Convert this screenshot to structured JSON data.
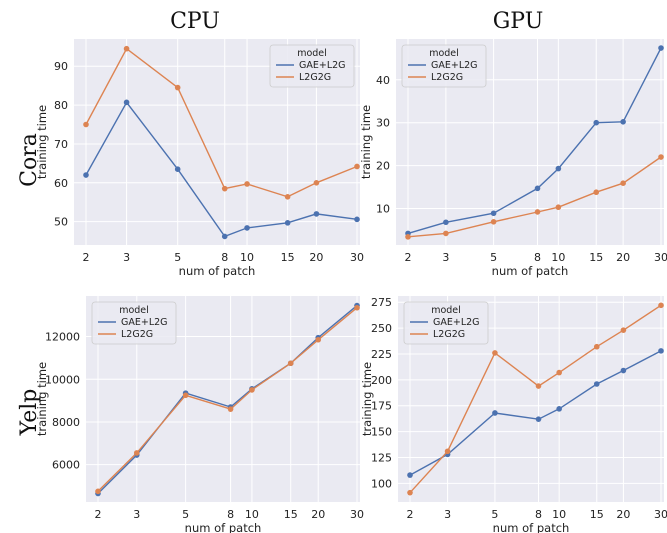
{
  "column_titles": [
    "CPU",
    "GPU"
  ],
  "row_titles": [
    "Cora",
    "Yelp"
  ],
  "colors": {
    "GAE+L2G": "#4c72b0",
    "L2G2G": "#dd8452",
    "panel_bg": "#eaeaf2",
    "grid": "#ffffff"
  },
  "chart_data": [
    {
      "type": "line",
      "row": "Cora",
      "column": "CPU",
      "x": [
        2,
        3,
        5,
        8,
        10,
        15,
        20,
        30
      ],
      "xticklabels": [
        "2",
        "3",
        "5",
        "8",
        "10",
        "15",
        "20",
        "30"
      ],
      "xscale": "log",
      "xlabel": "num of patch",
      "ylabel": "training time",
      "ylim": [
        44,
        97
      ],
      "yticks": [
        50,
        60,
        70,
        80,
        90
      ],
      "yticklabels": [
        "50",
        "60",
        "70",
        "80",
        "90"
      ],
      "legend": {
        "title": "model",
        "placement": "top-right"
      },
      "series": [
        {
          "name": "GAE+L2G",
          "values": [
            62,
            80.7,
            63.5,
            46.2,
            48.4,
            49.7,
            52,
            50.6
          ]
        },
        {
          "name": "L2G2G",
          "values": [
            75,
            94.5,
            84.5,
            58.5,
            59.7,
            56.4,
            60,
            64.2
          ]
        }
      ]
    },
    {
      "type": "line",
      "row": "Cora",
      "column": "GPU",
      "x": [
        2,
        3,
        5,
        8,
        10,
        15,
        20,
        30
      ],
      "xticklabels": [
        "2",
        "3",
        "5",
        "8",
        "10",
        "15",
        "20",
        "30"
      ],
      "xscale": "log",
      "xlabel": "num of patch",
      "ylabel": "training time",
      "ylim": [
        1.5,
        49.5
      ],
      "yticks": [
        10,
        20,
        30,
        40
      ],
      "yticklabels": [
        "10",
        "20",
        "30",
        "40"
      ],
      "legend": {
        "title": "model",
        "placement": "top-left"
      },
      "series": [
        {
          "name": "GAE+L2G",
          "values": [
            4.2,
            6.8,
            8.9,
            14.7,
            19.3,
            30,
            30.2,
            47.4
          ]
        },
        {
          "name": "L2G2G",
          "values": [
            3.4,
            4.2,
            6.9,
            9.2,
            10.3,
            13.8,
            15.9,
            22
          ]
        }
      ]
    },
    {
      "type": "line",
      "row": "Yelp",
      "column": "CPU",
      "x": [
        2,
        3,
        5,
        8,
        10,
        15,
        20,
        30
      ],
      "xticklabels": [
        "2",
        "3",
        "5",
        "8",
        "10",
        "15",
        "20",
        "30"
      ],
      "xscale": "log",
      "xlabel": "num of patch",
      "ylabel": "training time",
      "ylim": [
        4250,
        13900
      ],
      "yticks": [
        6000,
        8000,
        10000,
        12000
      ],
      "yticklabels": [
        "6000",
        "8000",
        "10000",
        "12000"
      ],
      "legend": {
        "title": "model",
        "placement": "top-left"
      },
      "series": [
        {
          "name": "GAE+L2G",
          "values": [
            4650,
            6450,
            9350,
            8700,
            9550,
            10750,
            11950,
            13450
          ]
        },
        {
          "name": "L2G2G",
          "values": [
            4750,
            6550,
            9250,
            8600,
            9500,
            10750,
            11850,
            13350
          ]
        }
      ]
    },
    {
      "type": "line",
      "row": "Yelp",
      "column": "GPU",
      "x": [
        2,
        3,
        5,
        8,
        10,
        15,
        20,
        30
      ],
      "xticklabels": [
        "2",
        "3",
        "5",
        "8",
        "10",
        "15",
        "20",
        "30"
      ],
      "xscale": "log",
      "xlabel": "num of patch",
      "ylabel": "training time",
      "ylim": [
        82,
        281
      ],
      "yticks": [
        100,
        125,
        150,
        175,
        200,
        225,
        250,
        275
      ],
      "yticklabels": [
        "100",
        "125",
        "150",
        "175",
        "200",
        "225",
        "250",
        "275"
      ],
      "legend": {
        "title": "model",
        "placement": "top-left"
      },
      "series": [
        {
          "name": "GAE+L2G",
          "values": [
            108,
            128,
            168,
            162,
            172,
            196,
            209,
            228
          ]
        },
        {
          "name": "L2G2G",
          "values": [
            91,
            131,
            226,
            194,
            207,
            232,
            248,
            272
          ]
        }
      ]
    }
  ]
}
